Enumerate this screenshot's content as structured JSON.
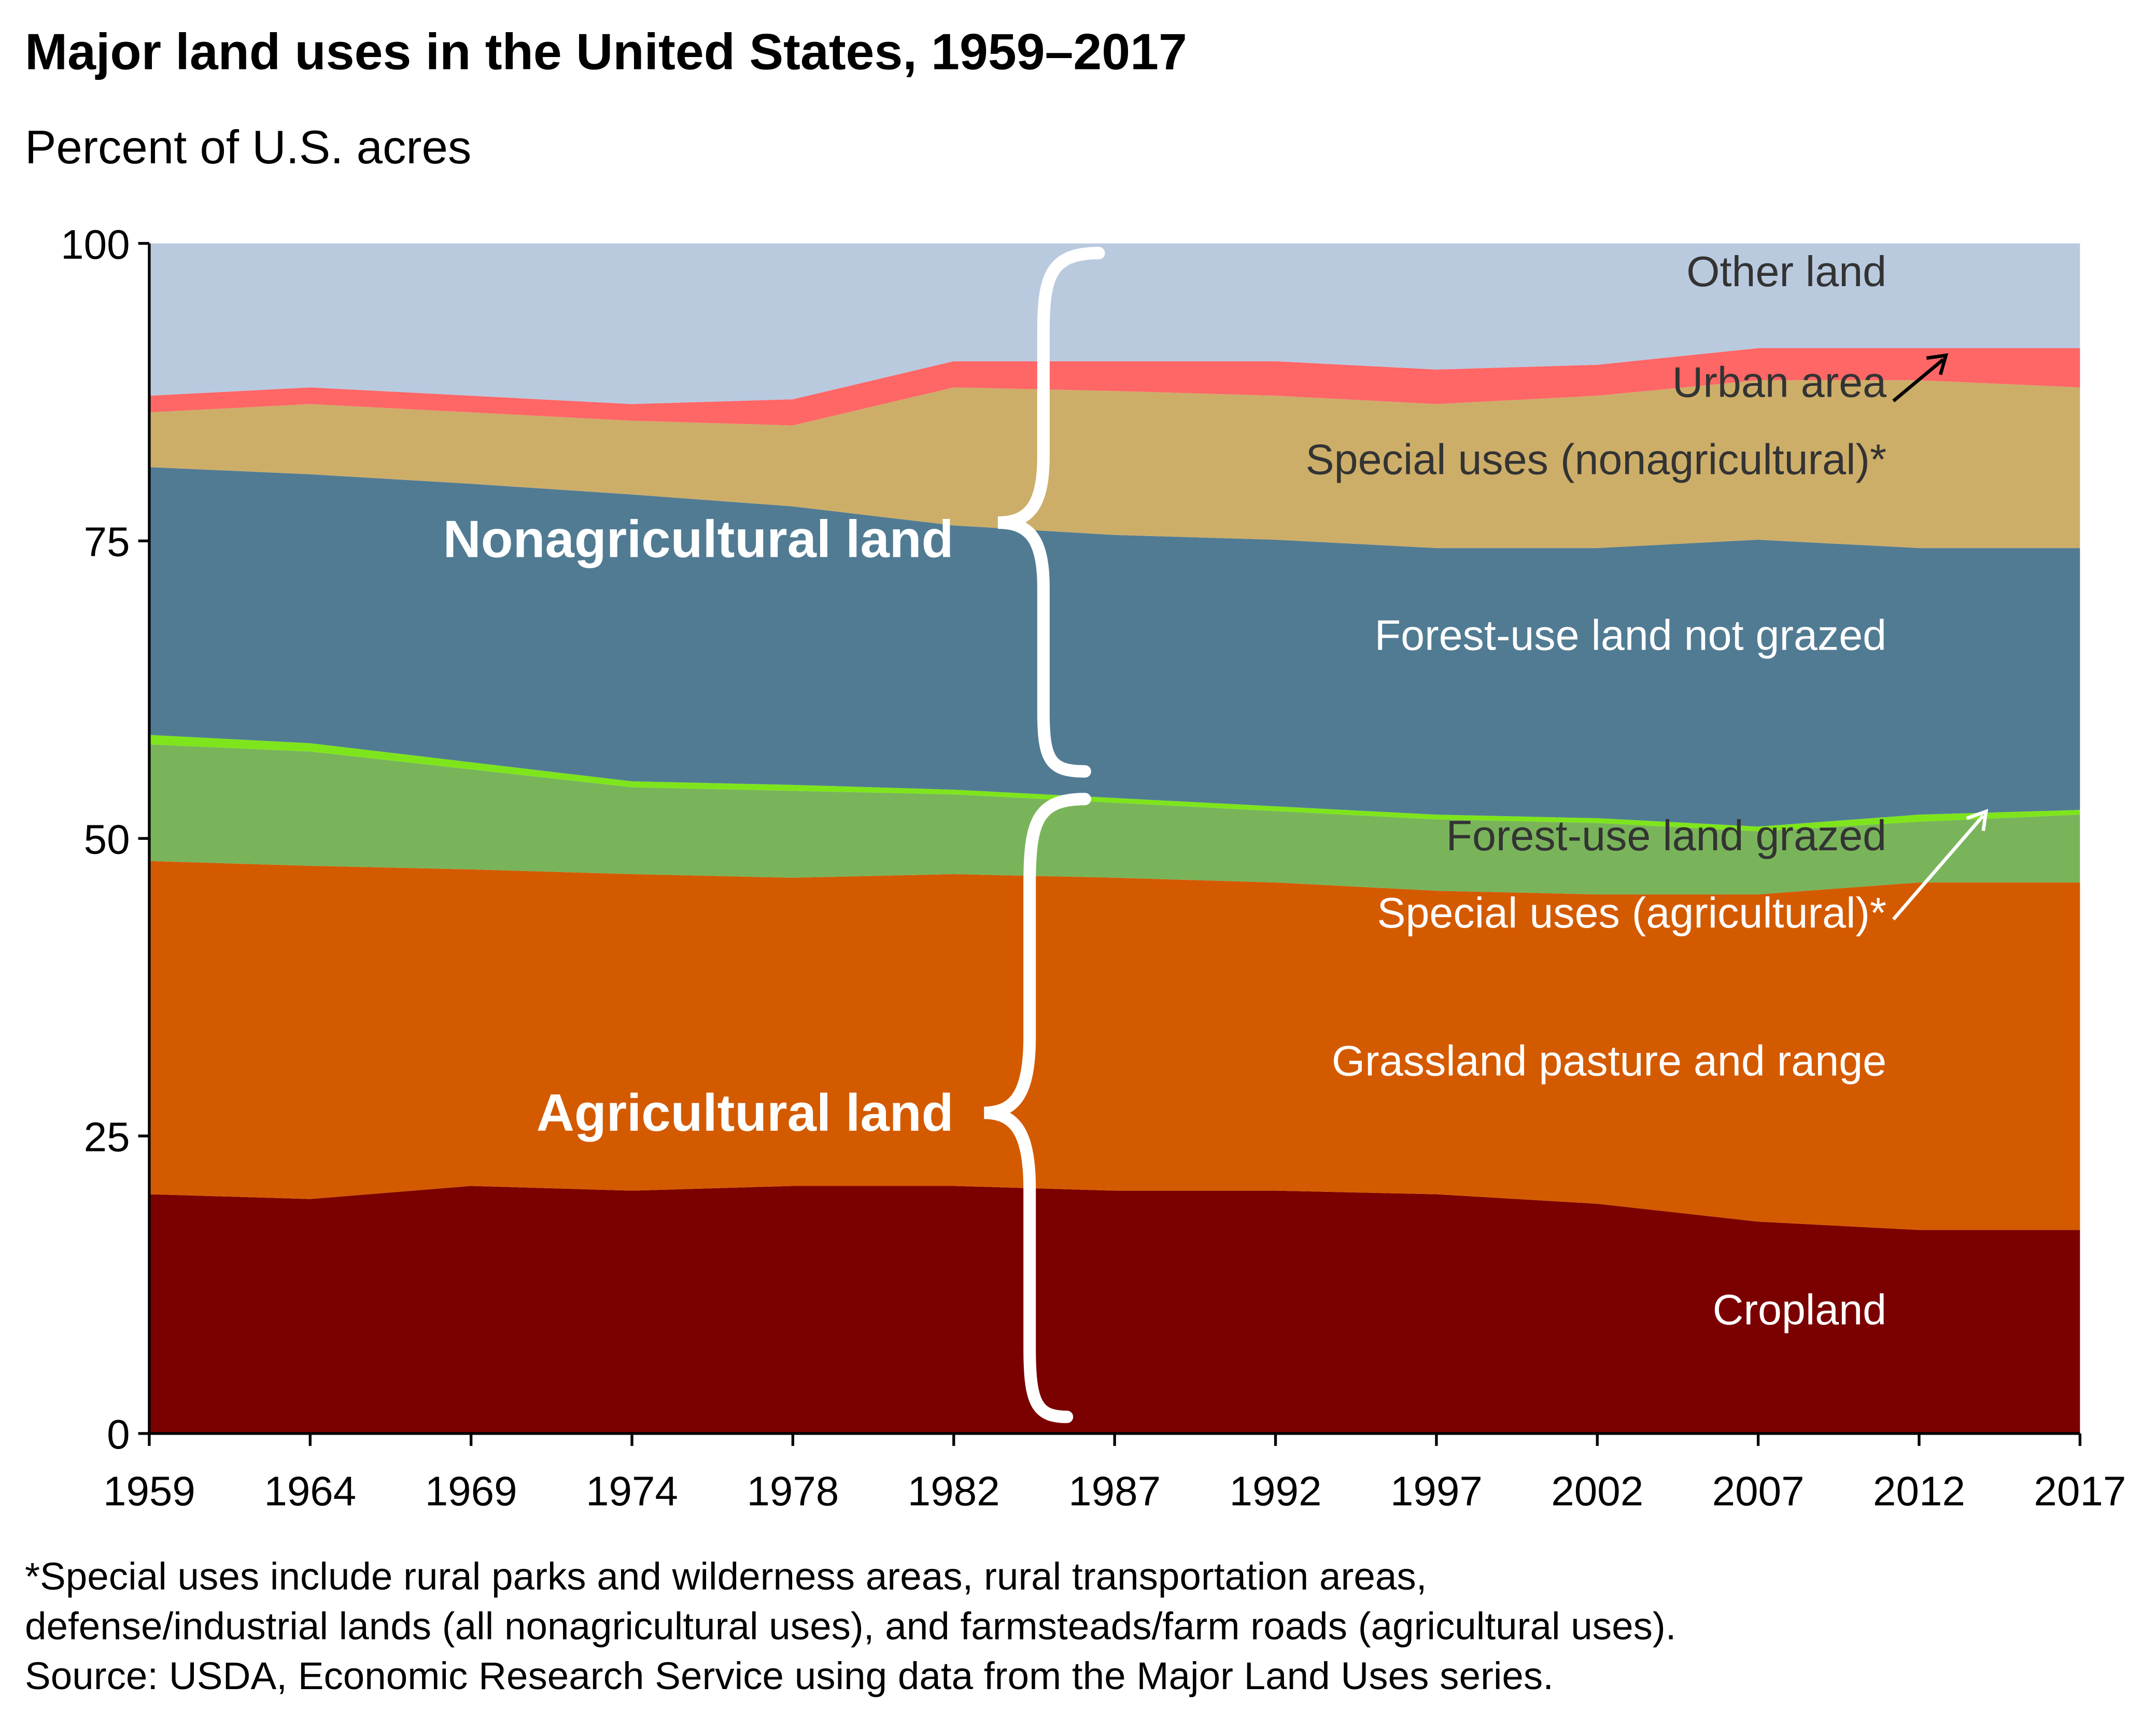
{
  "chart_data": {
    "type": "stacked-area",
    "title": "Major land uses in the United States, 1959–2017",
    "subtitle": "Percent of U.S. acres",
    "categories": [
      "1959",
      "1964",
      "1969",
      "1974",
      "1978",
      "1982",
      "1987",
      "1992",
      "1997",
      "2002",
      "2007",
      "2012",
      "2017"
    ],
    "ylim": [
      0,
      100
    ],
    "yticks": [
      0,
      25,
      50,
      75,
      100
    ],
    "series": [
      {
        "name": "Cropland",
        "color": "#7b0000",
        "values": [
          20.1,
          19.7,
          20.8,
          20.4,
          20.8,
          20.8,
          20.4,
          20.4,
          20.1,
          19.3,
          17.8,
          17.1,
          17.1
        ]
      },
      {
        "name": "Grassland pasture and range",
        "color": "#d45a00",
        "values": [
          28.0,
          28.0,
          26.6,
          26.6,
          25.9,
          26.2,
          26.3,
          25.9,
          25.5,
          26.0,
          27.5,
          29.2,
          29.2
        ]
      },
      {
        "name": "Forest-use land grazed",
        "color": "#79b45a",
        "values": [
          9.8,
          9.6,
          8.4,
          7.3,
          7.3,
          6.7,
          6.3,
          6.0,
          6.0,
          6.0,
          5.3,
          5.1,
          5.7
        ]
      },
      {
        "name": "Special uses (agricultural)*",
        "color": "#7ee51c",
        "values": [
          0.8,
          0.7,
          0.6,
          0.5,
          0.5,
          0.4,
          0.4,
          0.4,
          0.4,
          0.4,
          0.4,
          0.6,
          0.4
        ]
      },
      {
        "name": "Forest-use land not grazed",
        "color": "#517b93",
        "values": [
          22.5,
          22.6,
          23.4,
          24.1,
          23.4,
          22.2,
          22.1,
          22.4,
          22.4,
          22.7,
          24.1,
          22.4,
          22.0
        ]
      },
      {
        "name": "Special uses (nonagricultural)*",
        "color": "#cdae69",
        "values": [
          4.6,
          5.9,
          6.0,
          6.2,
          6.8,
          11.6,
          12.1,
          12.1,
          12.1,
          12.8,
          13.4,
          14.1,
          13.5
        ]
      },
      {
        "name": "Urban area",
        "color": "#ff6666",
        "values": [
          1.4,
          1.4,
          1.4,
          1.4,
          2.2,
          2.2,
          2.5,
          2.9,
          2.9,
          2.6,
          2.7,
          2.7,
          3.3
        ]
      },
      {
        "name": "Other land",
        "color": "#b9cadf",
        "values": [
          12.8,
          12.1,
          12.8,
          13.5,
          13.1,
          9.9,
          9.9,
          9.9,
          10.6,
          10.2,
          8.8,
          8.8,
          8.8
        ]
      }
    ],
    "annotations": [
      "Nonagricultural land",
      "Agricultural land"
    ],
    "notes": [
      "*Special uses include rural parks and wilderness areas, rural transportation areas,",
      "defense/industrial lands (all nonagricultural uses), and farmsteads/farm roads (agricultural uses).",
      "Source: USDA, Economic Research Service using data from the Major Land Uses series."
    ]
  }
}
